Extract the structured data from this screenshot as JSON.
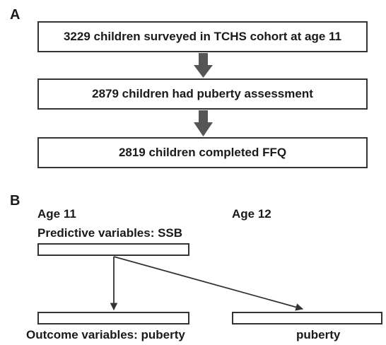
{
  "panel_a": {
    "label": "A",
    "steps": [
      "3229 children surveyed in TCHS cohort at age 11",
      "2879 children had puberty assessment",
      "2819 children completed FFQ"
    ]
  },
  "panel_b": {
    "label": "B",
    "left_age": "Age 11",
    "right_age": "Age 12",
    "predictive_label": "Predictive variables: SSB",
    "outcome_left_label": "Outcome variables: puberty",
    "outcome_right_label": "puberty"
  }
}
